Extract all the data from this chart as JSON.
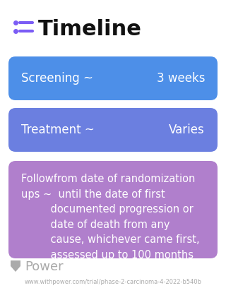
{
  "title": "Timeline",
  "title_icon_color": "#7B5CF5",
  "background_color": "#ffffff",
  "cards": [
    {
      "label_left": "Screening ~",
      "label_right": "3 weeks",
      "bg_color": "#4D8FE8",
      "text_color": "#ffffff",
      "type": "simple"
    },
    {
      "label_left": "Treatment ~",
      "label_right": "Varies",
      "bg_color": "#6B7FE0",
      "text_color": "#ffffff",
      "type": "simple"
    },
    {
      "label_left": "Followfrom date of randomization\nups ~  until the date of first\n         documented progression or\n         date of death from any\n         cause, whichever came first,\n         assessed up to 100 months",
      "label_right": "",
      "bg_color": "#B07FCC",
      "text_color": "#ffffff",
      "type": "multiline"
    }
  ],
  "footer_text": "Power",
  "footer_url": "www.withpower.com/trial/phase-2-carcinoma-4-2022-b540b",
  "footer_color": "#aaaaaa"
}
